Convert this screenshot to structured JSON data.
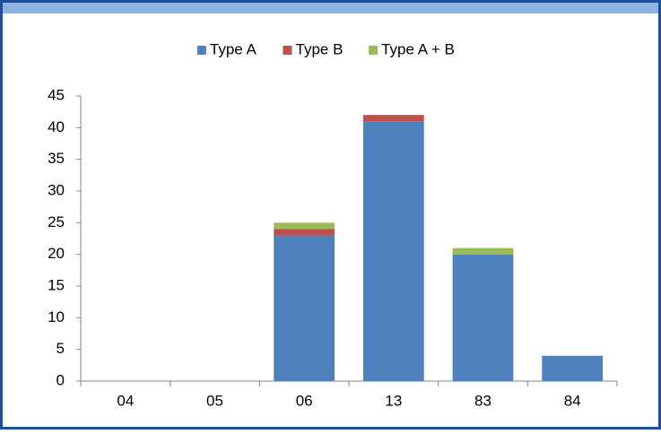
{
  "chart_data": {
    "type": "stacked-bar",
    "categories": [
      "04",
      "05",
      "06",
      "13",
      "83",
      "84"
    ],
    "series": [
      {
        "name": "Type A",
        "color": "#4f81bd",
        "values": [
          0,
          0,
          23,
          41,
          20,
          4
        ]
      },
      {
        "name": "Type B",
        "color": "#c0504d",
        "values": [
          0,
          0,
          1,
          1,
          0,
          0
        ]
      },
      {
        "name": "Type A + B",
        "color": "#9bbb59",
        "values": [
          0,
          0,
          1,
          0,
          1,
          0
        ]
      }
    ],
    "ylim": [
      0,
      45
    ],
    "yticks": [
      0,
      5,
      10,
      15,
      20,
      25,
      30,
      35,
      40,
      45
    ],
    "grid": false,
    "legend": "top"
  }
}
